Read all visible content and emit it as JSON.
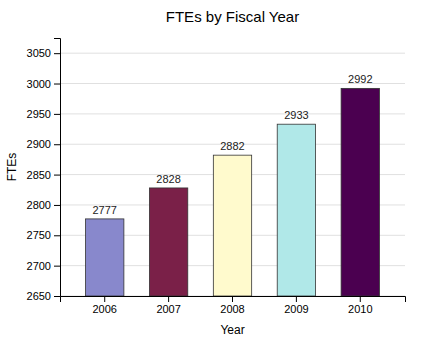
{
  "chart_data": {
    "type": "bar",
    "title": "FTEs by Fiscal Year",
    "xlabel": "Year",
    "ylabel": "FTEs",
    "categories": [
      "2006",
      "2007",
      "2008",
      "2009",
      "2010"
    ],
    "values": [
      2777,
      2828,
      2882,
      2933,
      2992
    ],
    "colors": [
      "#8888cc",
      "#7a2048",
      "#fffacd",
      "#b0e8e8",
      "#4b0050"
    ],
    "ylim": [
      2650,
      3075
    ],
    "yticks": [
      2650,
      2700,
      2750,
      2800,
      2850,
      2900,
      2950,
      3000,
      3050
    ],
    "grid": true,
    "data_labels": true
  }
}
